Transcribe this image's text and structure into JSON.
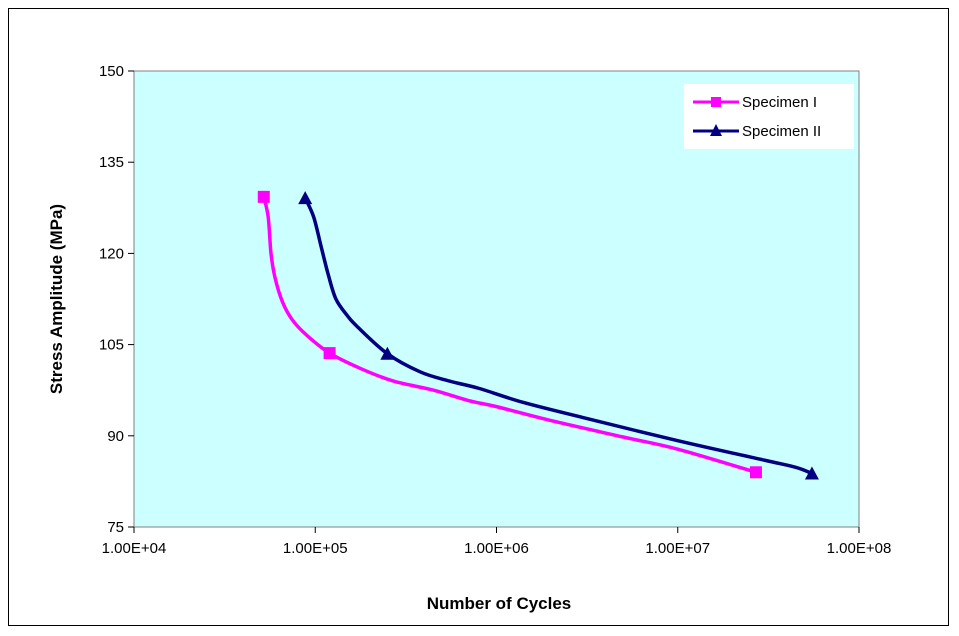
{
  "chart_data": {
    "type": "line",
    "title": "",
    "xlabel": "Number of Cycles",
    "ylabel": "Stress Amplitude (MPa)",
    "x_scale": "log",
    "xlim": [
      10000,
      100000000
    ],
    "ylim": [
      75,
      150
    ],
    "x_tick_labels": [
      "1.00E+04",
      "1.00E+05",
      "1.00E+06",
      "1.00E+07",
      "1.00E+08"
    ],
    "y_tick_labels": [
      "75",
      "90",
      "105",
      "120",
      "135",
      "150"
    ],
    "grid": false,
    "plot_background": "#ccffff",
    "legend_position": "top-right",
    "series": [
      {
        "name": "Specimen I",
        "color": "#ff00ff",
        "marker": "square",
        "points": [
          {
            "x": 52000,
            "y": 129.3,
            "marked": true
          },
          {
            "x": 55000,
            "y": 126
          },
          {
            "x": 57000,
            "y": 120
          },
          {
            "x": 60000,
            "y": 116
          },
          {
            "x": 66000,
            "y": 112
          },
          {
            "x": 75000,
            "y": 109
          },
          {
            "x": 90000,
            "y": 106.5
          },
          {
            "x": 120000,
            "y": 103.6,
            "marked": true
          },
          {
            "x": 180000,
            "y": 101
          },
          {
            "x": 270000,
            "y": 99
          },
          {
            "x": 450000,
            "y": 97.5
          },
          {
            "x": 700000,
            "y": 95.8
          },
          {
            "x": 1000000,
            "y": 94.8
          },
          {
            "x": 2000000,
            "y": 92.5
          },
          {
            "x": 5000000,
            "y": 89.8
          },
          {
            "x": 10000000,
            "y": 87.8
          },
          {
            "x": 27000000,
            "y": 84.0,
            "marked": true
          }
        ]
      },
      {
        "name": "Specimen II",
        "color": "#000080",
        "marker": "triangle",
        "points": [
          {
            "x": 88000,
            "y": 129.1,
            "marked": true
          },
          {
            "x": 98000,
            "y": 126
          },
          {
            "x": 108000,
            "y": 121
          },
          {
            "x": 118000,
            "y": 116.5
          },
          {
            "x": 130000,
            "y": 112.5
          },
          {
            "x": 150000,
            "y": 109.8
          },
          {
            "x": 170000,
            "y": 108
          },
          {
            "x": 250000,
            "y": 103.5,
            "marked": true
          },
          {
            "x": 380000,
            "y": 100.5
          },
          {
            "x": 550000,
            "y": 99
          },
          {
            "x": 800000,
            "y": 97.8
          },
          {
            "x": 1400000,
            "y": 95.5
          },
          {
            "x": 3000000,
            "y": 93
          },
          {
            "x": 10000000,
            "y": 89.2
          },
          {
            "x": 30000000,
            "y": 86
          },
          {
            "x": 45000000,
            "y": 84.8
          },
          {
            "x": 55000000,
            "y": 83.8,
            "marked": true
          }
        ]
      }
    ]
  }
}
